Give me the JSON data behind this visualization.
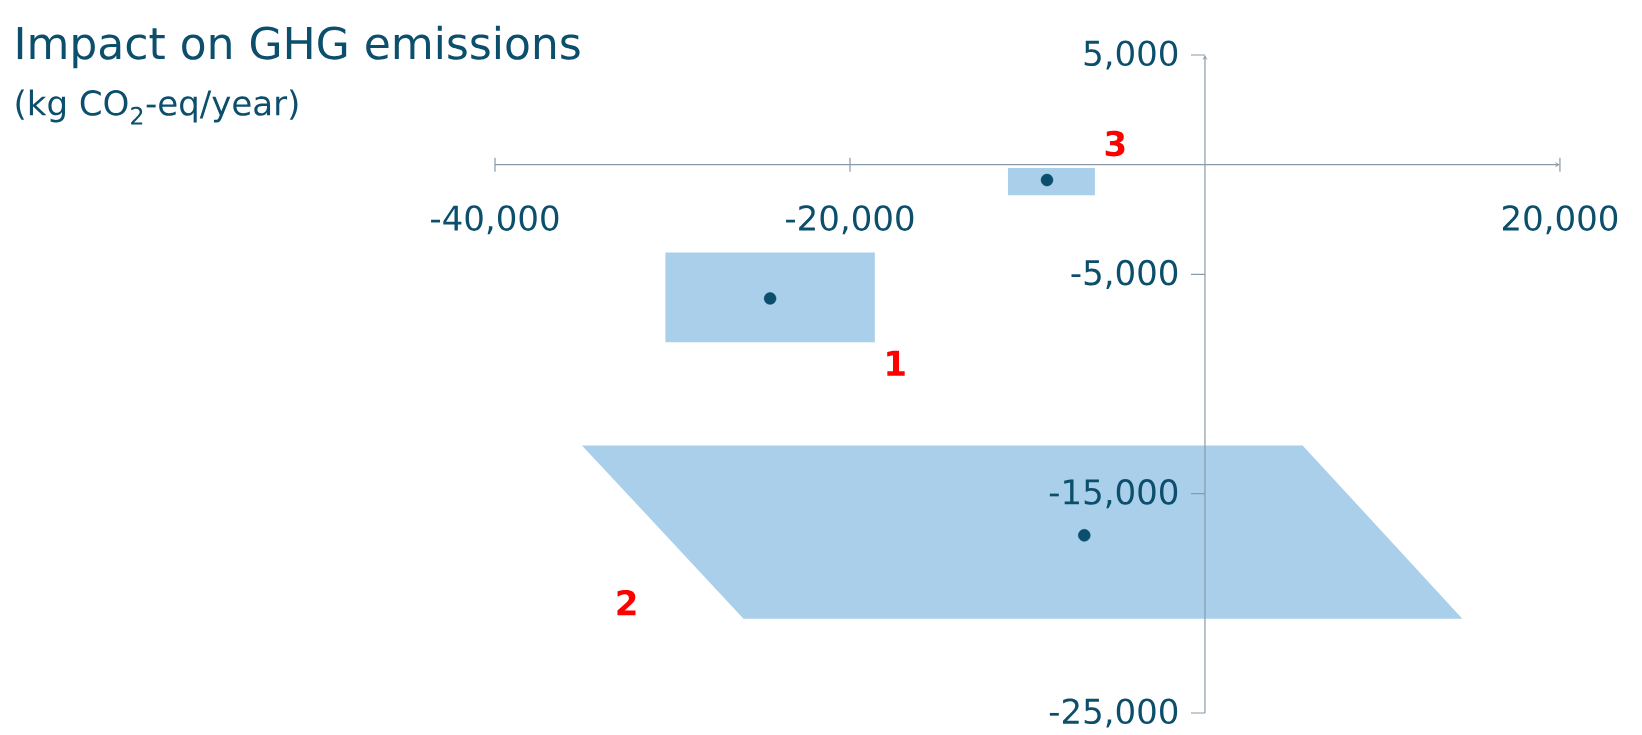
{
  "chart_data": {
    "type": "scatter",
    "title": "Impact on GHG emissions",
    "subtitle": "(kg CO$_{2}$-eq/year)",
    "xlim": [
      -40000,
      20000
    ],
    "ylim": [
      -25000,
      5000
    ],
    "xticks": [
      {
        "value": -40000,
        "label": "-40,000"
      },
      {
        "value": -20000,
        "label": "-20,000"
      },
      {
        "value": 0,
        "label": null
      },
      {
        "value": 20000,
        "label": "20,000"
      }
    ],
    "yticks": [
      {
        "value": 5000,
        "label": "5,000"
      },
      {
        "value": 0,
        "label": null
      },
      {
        "value": -5000,
        "label": "-5,000"
      },
      {
        "value": -15000,
        "label": "-15,000"
      },
      {
        "value": -25000,
        "label": "-25,000"
      }
    ],
    "series": [
      {
        "type": "area",
        "color": "#a9cfea",
        "x": [
          -30400,
          -18600,
          -18600,
          -30400
        ],
        "values": [
          -4000,
          -4000,
          -8100,
          -8100
        ]
      },
      {
        "type": "area",
        "color": "#a9cfea",
        "x": [
          -11100,
          -6200,
          -6200,
          -11100
        ],
        "values": [
          -150,
          -150,
          -1400,
          -1400
        ]
      },
      {
        "type": "area",
        "color": "#a9cfea",
        "x": [
          -35100,
          5500,
          14500,
          -26000
        ],
        "values": [
          -12800,
          -12800,
          -20700,
          -20700
        ]
      },
      {
        "color": "#0b4f6c",
        "x": [
          -24500,
          -6800,
          -8900
        ],
        "values": [
          -6100,
          -16900,
          -700
        ]
      }
    ],
    "annotations": [
      "1",
      "2",
      "3"
    ]
  }
}
